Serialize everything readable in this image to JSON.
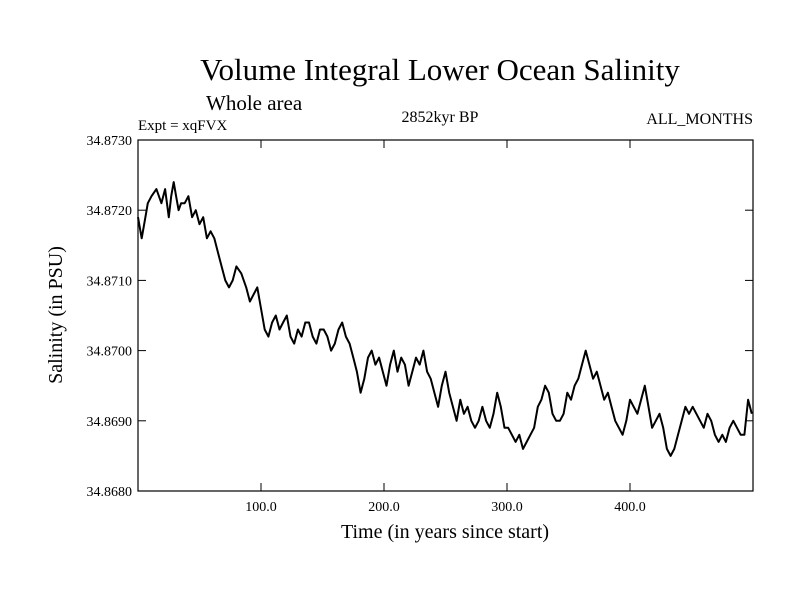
{
  "chart_data": {
    "type": "line",
    "title": "Volume Integral Lower Ocean Salinity",
    "subtitle": "Whole area",
    "left_label": "Expt = xqFVX",
    "center_label": "2852kyr BP",
    "right_label": "ALL_MONTHS",
    "xlabel": "Time (in years since start)",
    "ylabel": "Salinity (in PSU)",
    "xlim": [
      0,
      500
    ],
    "ylim": [
      34.868,
      34.873
    ],
    "x_ticks": [
      100,
      200,
      300,
      400
    ],
    "x_tick_labels": [
      "100.0",
      "200.0",
      "300.0",
      "400.0"
    ],
    "y_ticks": [
      34.868,
      34.869,
      34.87,
      34.871,
      34.872,
      34.873
    ],
    "y_tick_labels": [
      "34.8680",
      "34.8690",
      "34.8700",
      "34.8710",
      "34.8720",
      "34.8730"
    ],
    "series": [
      {
        "name": "Salinity",
        "color": "#000000",
        "x": [
          0,
          3,
          6,
          8,
          11,
          15,
          19,
          22,
          25,
          27,
          29,
          31,
          33,
          35,
          38,
          41,
          44,
          47,
          50,
          53,
          56,
          59,
          62,
          65,
          68,
          71,
          74,
          77,
          80,
          84,
          88,
          91,
          94,
          97,
          100,
          103,
          106,
          109,
          112,
          115,
          118,
          121,
          124,
          127,
          130,
          133,
          136,
          139,
          142,
          145,
          148,
          151,
          154,
          157,
          160,
          163,
          166,
          169,
          172,
          175,
          178,
          181,
          184,
          187,
          190,
          193,
          196,
          199,
          202,
          205,
          208,
          211,
          214,
          217,
          220,
          223,
          226,
          229,
          232,
          235,
          238,
          241,
          244,
          247,
          250,
          253,
          256,
          259,
          262,
          265,
          268,
          271,
          274,
          277,
          280,
          283,
          286,
          289,
          292,
          295,
          298,
          301,
          304,
          307,
          310,
          313,
          316,
          319,
          322,
          325,
          328,
          331,
          334,
          337,
          340,
          343,
          346,
          349,
          352,
          355,
          358,
          361,
          364,
          367,
          370,
          373,
          376,
          379,
          382,
          385,
          388,
          391,
          394,
          397,
          400,
          403,
          406,
          409,
          412,
          415,
          418,
          421,
          424,
          427,
          430,
          433,
          436,
          439,
          442,
          445,
          448,
          451,
          454,
          457,
          460,
          463,
          466,
          469,
          472,
          475,
          478,
          481,
          484,
          487,
          490,
          493,
          496,
          499
        ],
        "y": [
          34.8719,
          34.8716,
          34.8719,
          34.8721,
          34.8722,
          34.8723,
          34.8721,
          34.8723,
          34.8719,
          34.8722,
          34.8724,
          34.8722,
          34.872,
          34.8721,
          34.8721,
          34.8722,
          34.8719,
          34.872,
          34.8718,
          34.8719,
          34.8716,
          34.8717,
          34.8716,
          34.8714,
          34.8712,
          34.871,
          34.8709,
          34.871,
          34.8712,
          34.8711,
          34.8709,
          34.8707,
          34.8708,
          34.8709,
          34.8706,
          34.8703,
          34.8702,
          34.8704,
          34.8705,
          34.8703,
          34.8704,
          34.8705,
          34.8702,
          34.8701,
          34.8703,
          34.8702,
          34.8704,
          34.8704,
          34.8702,
          34.8701,
          34.8703,
          34.8703,
          34.8702,
          34.87,
          34.8701,
          34.8703,
          34.8704,
          34.8702,
          34.8701,
          34.8699,
          34.8697,
          34.8694,
          34.8696,
          34.8699,
          34.87,
          34.8698,
          34.8699,
          34.8697,
          34.8695,
          34.8698,
          34.87,
          34.8697,
          34.8699,
          34.8698,
          34.8695,
          34.8697,
          34.8699,
          34.8698,
          34.87,
          34.8697,
          34.8696,
          34.8694,
          34.8692,
          34.8695,
          34.8697,
          34.8694,
          34.8692,
          34.869,
          34.8693,
          34.8691,
          34.8692,
          34.869,
          34.8689,
          34.869,
          34.8692,
          34.869,
          34.8689,
          34.8691,
          34.8694,
          34.8692,
          34.8689,
          34.8689,
          34.8688,
          34.8687,
          34.8688,
          34.8686,
          34.8687,
          34.8688,
          34.8689,
          34.8692,
          34.8693,
          34.8695,
          34.8694,
          34.8691,
          34.869,
          34.869,
          34.8691,
          34.8694,
          34.8693,
          34.8695,
          34.8696,
          34.8698,
          34.87,
          34.8698,
          34.8696,
          34.8697,
          34.8695,
          34.8693,
          34.8694,
          34.8692,
          34.869,
          34.8689,
          34.8688,
          34.869,
          34.8693,
          34.8692,
          34.8691,
          34.8693,
          34.8695,
          34.8692,
          34.8689,
          34.869,
          34.8691,
          34.8689,
          34.8686,
          34.8685,
          34.8686,
          34.8688,
          34.869,
          34.8692,
          34.8691,
          34.8692,
          34.8691,
          34.869,
          34.8689,
          34.8691,
          34.869,
          34.8688,
          34.8687,
          34.8688,
          34.8687,
          34.8689,
          34.869,
          34.8689,
          34.8688,
          34.8688,
          34.8693,
          34.8691
        ]
      }
    ]
  }
}
